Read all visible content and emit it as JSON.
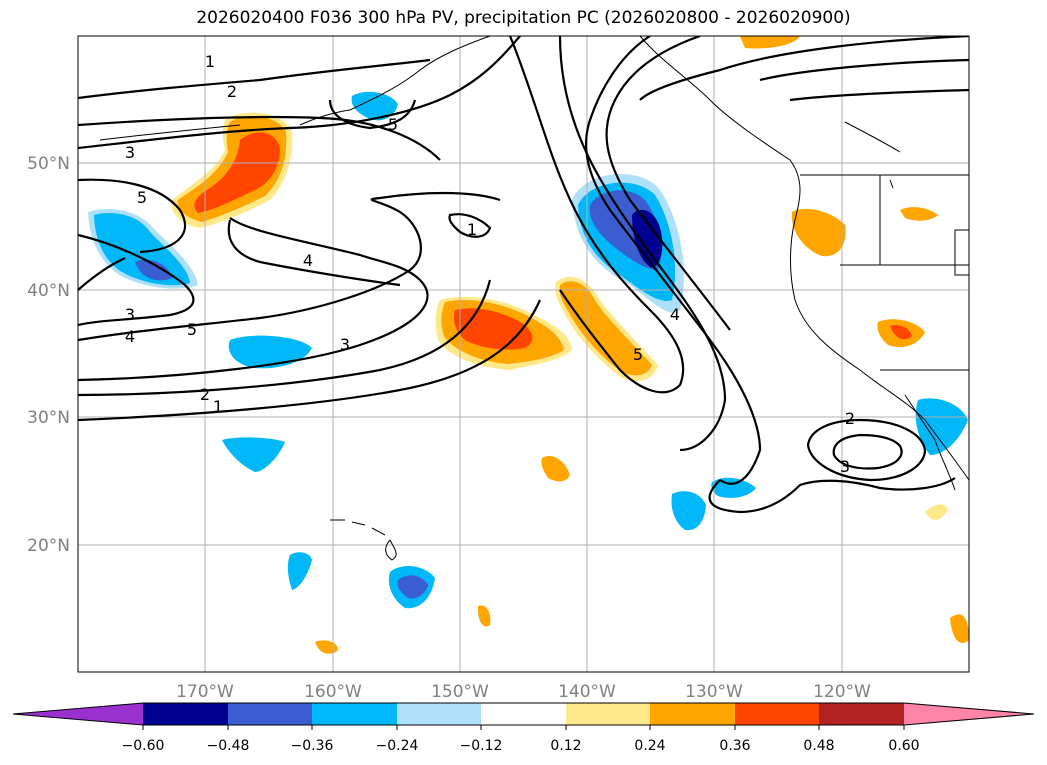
{
  "title": "2026020400 F036 300 hPa PV, precipitation PC (2026020800 - 2026020900)",
  "lon_ticks": [
    "170°W",
    "160°W",
    "150°W",
    "140°W",
    "130°W",
    "120°W"
  ],
  "lat_ticks": [
    "50°N",
    "40°N",
    "30°N",
    "20°N"
  ],
  "contour_labels": [
    "1",
    "2",
    "3",
    "5",
    "4",
    "3",
    "4",
    "5",
    "3",
    "2",
    "1",
    "1",
    "4",
    "5",
    "2",
    "3",
    "5"
  ],
  "colorbar": {
    "ticks": [
      "−0.60",
      "−0.48",
      "−0.36",
      "−0.24",
      "−0.12",
      "0.12",
      "0.24",
      "0.36",
      "0.48",
      "0.60"
    ],
    "colors": [
      "#9b30d0",
      "#000090",
      "#3a5ed0",
      "#00b8f8",
      "#aee0fa",
      "#ffffff",
      "#ffe88a",
      "#ffa500",
      "#ff4500",
      "#b22222",
      "#ff85a8"
    ]
  },
  "colors": {
    "neg_strong": "#000090",
    "neg_mid": "#3a5ed0",
    "neg": "#00b8f8",
    "neg_light": "#aee0fa",
    "pos_light": "#ffe88a",
    "pos": "#ffa500",
    "pos_mid": "#ff4500"
  }
}
